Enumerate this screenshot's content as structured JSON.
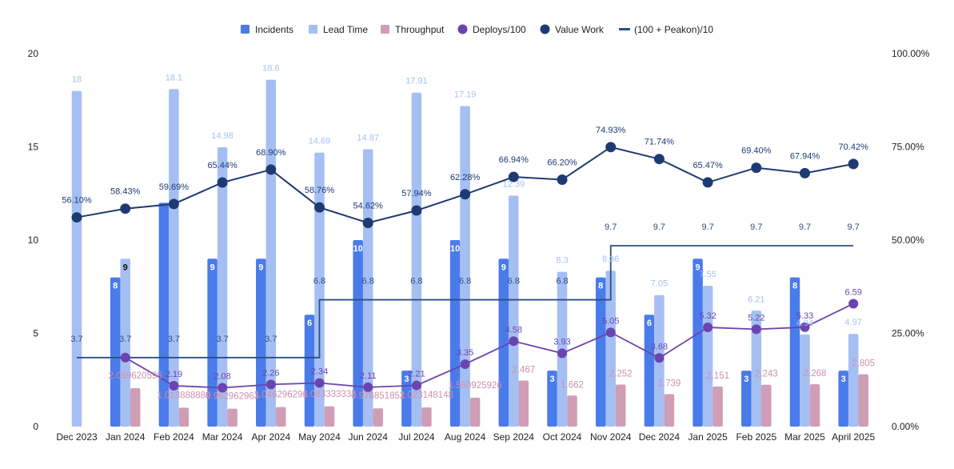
{
  "chart_data": {
    "type": "bar",
    "categories": [
      "Dec 2023",
      "Jan 2024",
      "Feb 2024",
      "Mar 2024",
      "Apr 2024",
      "May 2024",
      "Jun 2024",
      "Jul 2024",
      "Aug 2024",
      "Sep 2024",
      "Oct 2024",
      "Nov 2024",
      "Dec 2024",
      "Jan 2025",
      "Feb 2025",
      "Mar 2025",
      "April 2025"
    ],
    "ylim": [
      0,
      20
    ],
    "y_ticks": [
      "0",
      "5",
      "10",
      "15",
      "20"
    ],
    "y2lim": [
      0,
      100
    ],
    "y2_ticks": [
      "0.00%",
      "25.00%",
      "50.00%",
      "75.00%",
      "100.00%"
    ],
    "legend_position": "top-center",
    "grid": false,
    "series": [
      {
        "name": "Incidents",
        "kind": "bar",
        "axis": "left",
        "color": "#4A7BEA",
        "values": [
          null,
          8,
          12,
          9,
          9,
          6,
          10,
          3,
          10,
          9,
          3,
          8,
          6,
          9,
          3,
          8,
          3
        ],
        "labels": [
          "",
          "8",
          "",
          "9",
          "9",
          "6",
          "10",
          "3",
          "10",
          "9",
          "3",
          "8",
          "6",
          "9",
          "3",
          "8",
          "3"
        ]
      },
      {
        "name": "Lead Time",
        "kind": "bar",
        "axis": "left",
        "color": "#A5BFF3",
        "values": [
          18,
          9,
          18.1,
          14.98,
          18.6,
          14.69,
          14.87,
          17.91,
          17.19,
          12.39,
          8.3,
          8.36,
          7.05,
          7.55,
          6.21,
          4.94,
          4.97
        ],
        "labels": [
          "18",
          "9",
          "18.1",
          "14.98",
          "18.6",
          "14.69",
          "14.87",
          "17.91",
          "17.19",
          "12.39",
          "8.3",
          "8.36",
          "7.05",
          "7.55",
          "6.21",
          "4.94",
          "4.97"
        ]
      },
      {
        "name": "Throughput",
        "kind": "bar",
        "axis": "left",
        "color": "#CF9EB6",
        "values": [
          null,
          2.059620596,
          1.013888889,
          0.962962963,
          1.046296296,
          1.083333333,
          0.976851852,
          1.023148148,
          1.550925926,
          2.467,
          1.662,
          2.252,
          1.739,
          2.151,
          2.243,
          2.268,
          2.805
        ],
        "labels": [
          "",
          "2.059620596",
          "1.013888889",
          "0.962962963",
          "1.046296296",
          "1.083333333",
          "0.976851852",
          "1.023148148",
          "1.550925926",
          "2.467",
          "1.662",
          "2.252",
          "1.739",
          "2.151",
          "2.243",
          "2.268",
          "2.805"
        ]
      },
      {
        "name": "Deploys/100",
        "kind": "line",
        "axis": "left",
        "color": "#6B44B0",
        "values": [
          null,
          3.7,
          2.19,
          2.08,
          2.26,
          2.34,
          2.11,
          2.21,
          3.35,
          4.58,
          3.93,
          5.05,
          3.68,
          5.32,
          5.22,
          5.33,
          6.59
        ],
        "labels": [
          "",
          "",
          "2.19",
          "2.08",
          "2.26",
          "2.34",
          "2.11",
          "2.21",
          "3.35",
          "4.58",
          "3.93",
          "5.05",
          "3.68",
          "5.32",
          "5.22",
          "5.33",
          "6.59"
        ]
      },
      {
        "name": "Value Work",
        "kind": "line",
        "axis": "right",
        "color": "#1E3A72",
        "values": [
          56.1,
          58.43,
          59.69,
          65.44,
          68.9,
          58.76,
          54.62,
          57.94,
          62.28,
          66.94,
          66.2,
          74.93,
          71.74,
          65.47,
          69.4,
          67.94,
          70.42
        ],
        "labels": [
          "56.10%",
          "58.43%",
          "59.69%",
          "65.44%",
          "68.90%",
          "58.76%",
          "54.62%",
          "57.94%",
          "62.28%",
          "66.94%",
          "66.20%",
          "74.93%",
          "71.74%",
          "65.47%",
          "69.40%",
          "67.94%",
          "70.42%"
        ]
      },
      {
        "name": "(100 + Peakon)/10",
        "kind": "step",
        "axis": "left",
        "color": "#2B4F86",
        "values": [
          3.7,
          3.7,
          3.7,
          3.7,
          3.7,
          6.8,
          6.8,
          6.8,
          6.8,
          6.8,
          6.8,
          9.7,
          9.7,
          9.7,
          9.7,
          9.7,
          9.7
        ],
        "labels": [
          "3.7",
          "3.7",
          "3.7",
          "3.7",
          "3.7",
          "6.8",
          "6.8",
          "6.8",
          "6.8",
          "6.8",
          "6.8",
          "9.7",
          "9.7",
          "9.7",
          "9.7",
          "9.7",
          "9.7"
        ]
      }
    ]
  }
}
